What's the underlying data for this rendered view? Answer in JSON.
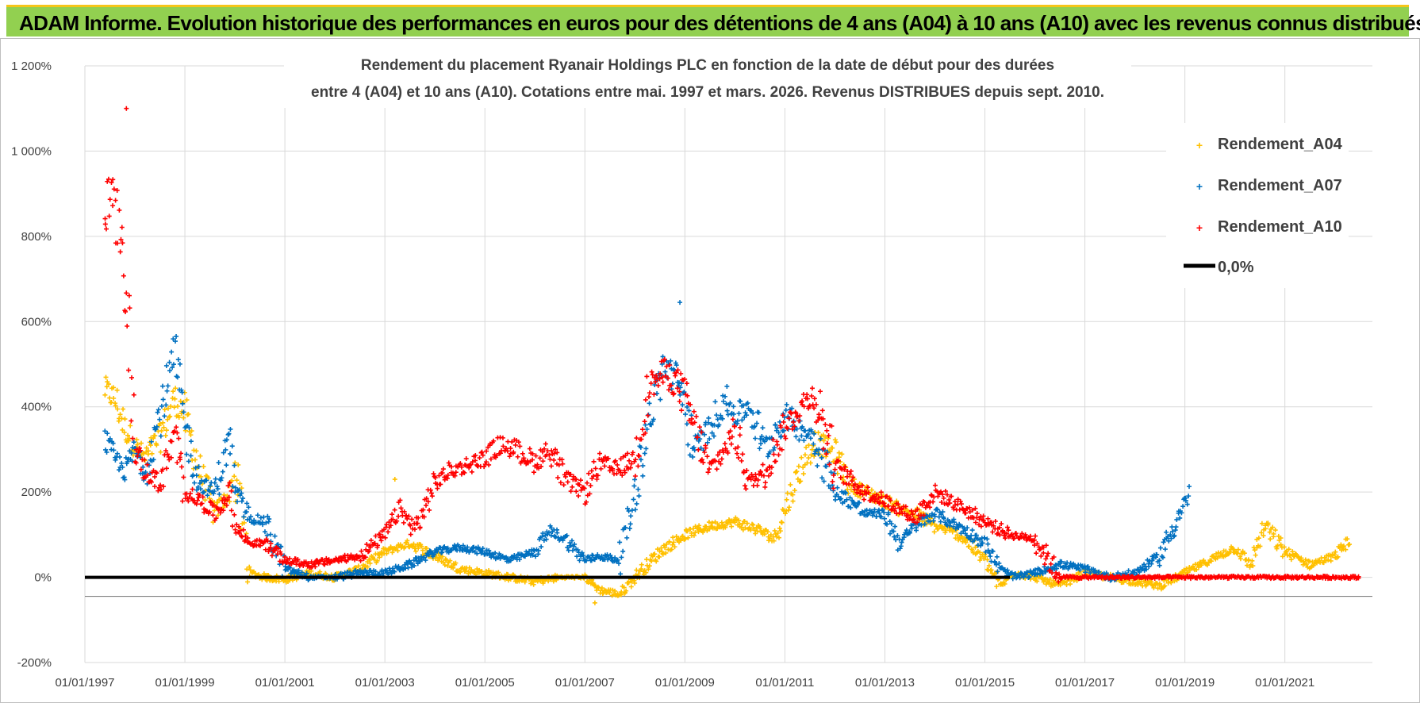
{
  "banner": {
    "title": "ADAM Informe. Evolution historique des performances en euros pour des détentions de 4 ans (A04) à 10 ans (A10) avec les revenus connus distribués"
  },
  "colors": {
    "banner_bg": "#92d050",
    "banner_border": "#f5c518",
    "A04": "#ffc000",
    "A07": "#0070c0",
    "A10": "#ff0000",
    "zero": "#000000"
  },
  "chart_data": {
    "type": "scatter",
    "title": "Rendement du placement Ryanair Holdings PLC en fonction de la date de début pour des durées",
    "subtitle": "entre 4 (A04) et 10 ans (A10).  Cotations entre mai. 1997 et mars. 2026. Revenus DISTRIBUES depuis sept. 2010.",
    "xlabel": "",
    "ylabel": "",
    "x_unit": "year",
    "xlim": [
      1997.0,
      2022.75
    ],
    "ylim": [
      -200,
      1200
    ],
    "y_ticks": [
      -200,
      0,
      200,
      400,
      600,
      800,
      1000,
      1200
    ],
    "y_tick_labels": [
      "-200%",
      "0%",
      "200%",
      "400%",
      "600%",
      "800%",
      "1 000%",
      "1 200%"
    ],
    "x_ticks": [
      1997,
      1999,
      2001,
      2003,
      2005,
      2007,
      2009,
      2011,
      2013,
      2015,
      2017,
      2019,
      2021
    ],
    "x_tick_labels": [
      "01/01/1997",
      "01/01/1999",
      "01/01/2001",
      "01/01/2003",
      "01/01/2005",
      "01/01/2007",
      "01/01/2009",
      "01/01/2011",
      "01/01/2013",
      "01/01/2015",
      "01/01/2017",
      "01/01/2019",
      "01/01/2021"
    ],
    "grid": true,
    "legend_position": "top-right",
    "series": [
      {
        "name": "Rendement_A04",
        "x": [
          1997.4,
          1997.6,
          1997.8,
          1998.0,
          1998.2,
          1998.5,
          1998.8,
          1999.0,
          1999.3,
          1999.6,
          1999.9,
          2000.0,
          2000.3,
          2000.6,
          2001.0,
          2001.5,
          2002.0,
          2002.5,
          2003.0,
          2003.5,
          2004.0,
          2004.5,
          2005.0,
          2005.5,
          2006.0,
          2006.5,
          2007.0,
          2007.3,
          2007.7,
          2008.0,
          2008.5,
          2009.0,
          2009.5,
          2010.0,
          2010.5,
          2010.8,
          2011.0,
          2011.3,
          2011.6,
          2012.0,
          2012.3,
          2012.6,
          2013.0,
          2013.3,
          2013.6,
          2014.0,
          2014.3,
          2014.6,
          2015.0,
          2015.3,
          2015.6,
          2016.0,
          2016.5,
          2017.0,
          2017.5,
          2018.0,
          2018.5,
          2019.0,
          2019.5,
          2020.0,
          2020.3,
          2020.6,
          2021.0,
          2021.5,
          2022.0,
          2022.3
        ],
        "y": [
          440,
          420,
          350,
          310,
          280,
          330,
          420,
          380,
          250,
          150,
          200,
          250,
          10,
          0,
          -5,
          10,
          0,
          20,
          60,
          80,
          50,
          20,
          10,
          0,
          -10,
          0,
          0,
          -30,
          -40,
          0,
          60,
          100,
          120,
          130,
          110,
          90,
          160,
          250,
          320,
          290,
          220,
          200,
          180,
          160,
          150,
          120,
          110,
          90,
          40,
          -20,
          10,
          0,
          -20,
          10,
          0,
          -10,
          -20,
          10,
          40,
          70,
          30,
          120,
          60,
          30,
          50,
          90
        ]
      },
      {
        "name": "Rendement_A07",
        "x": [
          1997.4,
          1997.6,
          1997.8,
          1998.0,
          1998.2,
          1998.5,
          1998.8,
          1999.0,
          1999.3,
          1999.6,
          1999.9,
          2000.0,
          2000.3,
          2000.6,
          2001.0,
          2001.5,
          2002.0,
          2002.5,
          2003.0,
          2003.5,
          2004.0,
          2004.5,
          2005.0,
          2005.5,
          2006.0,
          2006.3,
          2006.6,
          2007.0,
          2007.3,
          2007.7,
          2008.0,
          2008.3,
          2008.6,
          2008.9,
          2009.2,
          2009.5,
          2009.8,
          2010.0,
          2010.3,
          2010.6,
          2011.0,
          2011.3,
          2011.6,
          2012.0,
          2012.3,
          2012.6,
          2013.0,
          2013.3,
          2013.6,
          2014.0,
          2014.3,
          2014.6,
          2015.0,
          2015.3,
          2015.6,
          2016.0,
          2016.5,
          2017.0,
          2017.5,
          2018.0,
          2018.5,
          2018.9,
          2019.1
        ],
        "y": [
          320,
          280,
          250,
          300,
          250,
          380,
          520,
          350,
          220,
          200,
          330,
          200,
          140,
          130,
          20,
          0,
          0,
          10,
          10,
          30,
          60,
          70,
          60,
          40,
          60,
          110,
          90,
          40,
          50,
          40,
          200,
          380,
          500,
          450,
          300,
          350,
          420,
          380,
          400,
          300,
          380,
          350,
          330,
          200,
          180,
          150,
          150,
          80,
          120,
          150,
          130,
          110,
          80,
          20,
          0,
          10,
          30,
          20,
          0,
          10,
          50,
          150,
          200
        ]
      },
      {
        "name": "Rendement_A10",
        "x": [
          1997.4,
          1997.55,
          1997.7,
          1997.85,
          1998.0,
          1998.2,
          1998.5,
          1998.8,
          1999.0,
          1999.3,
          1999.6,
          1999.9,
          2000.0,
          2000.3,
          2000.6,
          2001.0,
          2001.5,
          2002.0,
          2002.5,
          2003.0,
          2003.3,
          2003.6,
          2004.0,
          2004.3,
          2004.6,
          2005.0,
          2005.3,
          2005.6,
          2006.0,
          2006.3,
          2006.6,
          2007.0,
          2007.3,
          2007.6,
          2008.0,
          2008.3,
          2008.6,
          2008.9,
          2009.2,
          2009.5,
          2009.8,
          2010.0,
          2010.3,
          2010.6,
          2011.0,
          2011.3,
          2011.6,
          2012.0,
          2012.3,
          2012.6,
          2013.0,
          2013.3,
          2013.6,
          2014.0,
          2014.3,
          2014.6,
          2015.0,
          2015.5,
          2016.0,
          2016.5,
          2017.0,
          2017.5,
          2018.0,
          2018.5,
          2019.0,
          2019.5,
          2020.0,
          2020.5,
          2021.0,
          2021.5,
          2022.0,
          2022.5
        ],
        "y": [
          850,
          900,
          780,
          650,
          300,
          250,
          220,
          330,
          200,
          180,
          150,
          200,
          120,
          80,
          80,
          40,
          30,
          40,
          50,
          100,
          160,
          110,
          220,
          250,
          260,
          280,
          310,
          300,
          270,
          300,
          230,
          200,
          270,
          250,
          280,
          450,
          480,
          450,
          350,
          250,
          300,
          350,
          220,
          250,
          350,
          400,
          430,
          260,
          230,
          200,
          180,
          160,
          140,
          200,
          180,
          160,
          130,
          100,
          90,
          0,
          0,
          0,
          0,
          0,
          0,
          0,
          0,
          0,
          0,
          0,
          0,
          0
        ]
      }
    ],
    "zero_line": {
      "name": "0,0%",
      "x_start": 1997.0,
      "x_end": 2015.5,
      "value": 0
    },
    "outliers": [
      {
        "series": "Rendement_A10",
        "x": 1997.83,
        "y": 1100
      },
      {
        "series": "Rendement_A07",
        "x": 2008.9,
        "y": 645
      },
      {
        "series": "Rendement_A04",
        "x": 2007.2,
        "y": -60
      },
      {
        "series": "Rendement_A04",
        "x": 2003.2,
        "y": 230
      }
    ],
    "legend": [
      {
        "label": "Rendement_A04",
        "marker": "plus",
        "color_key": "A04"
      },
      {
        "label": "Rendement_A07",
        "marker": "plus",
        "color_key": "A07"
      },
      {
        "label": "Rendement_A10",
        "marker": "plus",
        "color_key": "A10"
      },
      {
        "label": "0,0%",
        "marker": "line",
        "color_key": "zero"
      }
    ]
  }
}
